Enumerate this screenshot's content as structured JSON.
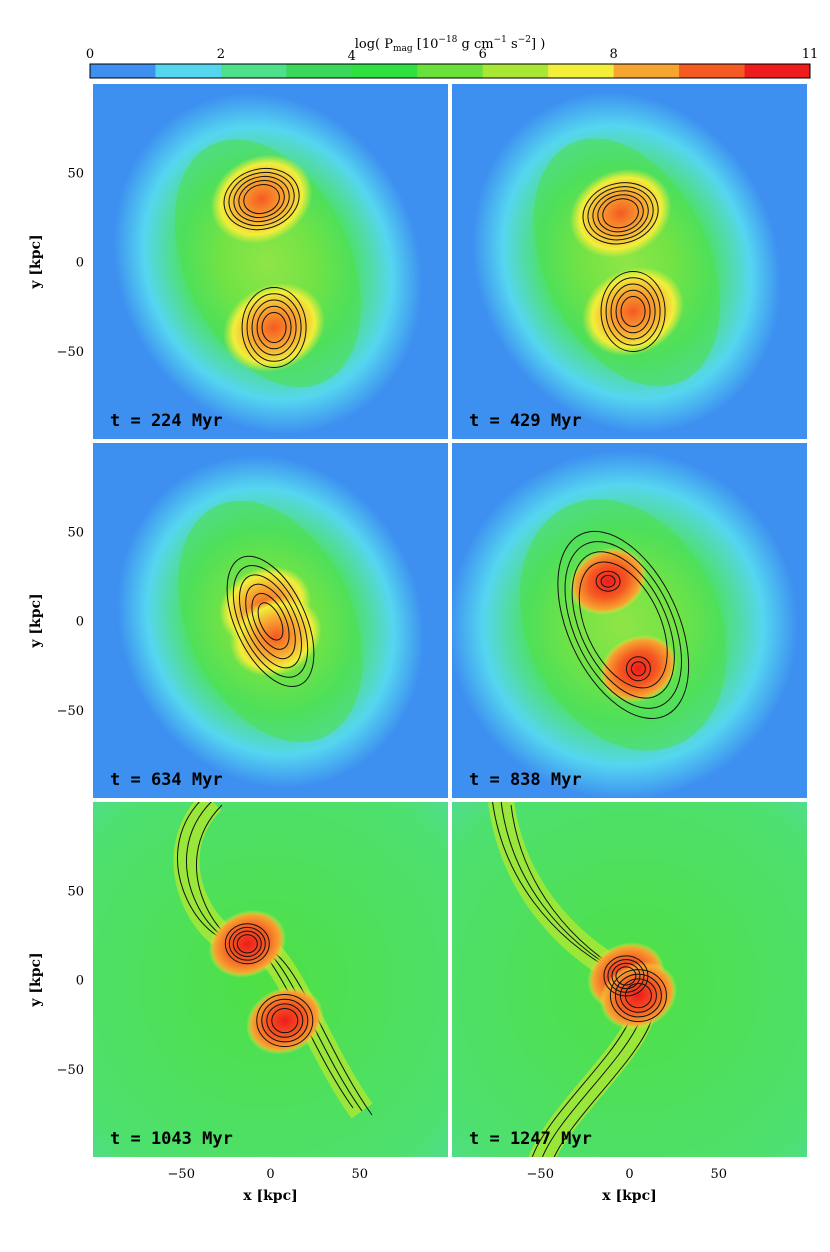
{
  "colorbar": {
    "title": "log( P",
    "title_sub": "mag",
    "title_rest": " [10",
    "title_exp1": "−18",
    "title_rest2": " g cm",
    "title_exp2": "−1",
    "title_rest3": " s",
    "title_exp3": "−2",
    "title_end": "] )",
    "tick_labels": [
      "0",
      "2",
      "4",
      "6",
      "8",
      "11"
    ],
    "colors": [
      "#3d8ff0",
      "#55d6f0",
      "#4ee08a",
      "#3ad85a",
      "#2ee040",
      "#6ae03a",
      "#a8e835",
      "#f2ee3a",
      "#f7a531",
      "#f55a22",
      "#ee1c1c"
    ]
  },
  "panels": [
    {
      "time_label": "t =  224 Myr"
    },
    {
      "time_label": "t =  429 Myr"
    },
    {
      "time_label": "t =  634 Myr"
    },
    {
      "time_label": "t =  838 Myr"
    },
    {
      "time_label": "t =  1043 Myr"
    },
    {
      "time_label": "t =  1247 Myr"
    }
  ],
  "axes": {
    "ylabel": "y [kpc]",
    "xlabel": "x [kpc]",
    "y_ticks": [
      "50",
      "0",
      "−50"
    ],
    "x_ticks": [
      "−50",
      "0",
      "50"
    ]
  },
  "chart_data": {
    "type": "heatmap",
    "title": "log( Pmag [10−18 g cm−1 s−2] )",
    "xlabel": "x [kpc]",
    "ylabel": "y [kpc]",
    "xlim": [
      -100,
      100
    ],
    "ylim": [
      -100,
      100
    ],
    "colorbar_range": [
      0,
      11
    ],
    "panels": [
      {
        "time_myr": 224,
        "peaks": [
          {
            "x": -5,
            "y": 35,
            "value": 8
          },
          {
            "x": 2,
            "y": -37,
            "value": 8
          }
        ]
      },
      {
        "time_myr": 429,
        "peaks": [
          {
            "x": -5,
            "y": 27,
            "value": 8
          },
          {
            "x": 2,
            "y": -28,
            "value": 8
          }
        ]
      },
      {
        "time_myr": 634,
        "peaks": [
          {
            "x": -3,
            "y": 8,
            "value": 9
          },
          {
            "x": 3,
            "y": -9,
            "value": 8.5
          }
        ]
      },
      {
        "time_myr": 838,
        "peaks": [
          {
            "x": -12,
            "y": 22,
            "value": 9
          },
          {
            "x": 5,
            "y": -27,
            "value": 9
          }
        ]
      },
      {
        "time_myr": 1043,
        "peaks": [
          {
            "x": -13,
            "y": 20,
            "value": 10
          },
          {
            "x": 8,
            "y": -23,
            "value": 10
          }
        ]
      },
      {
        "time_myr": 1247,
        "peaks": [
          {
            "x": -2,
            "y": 2,
            "value": 10.5
          },
          {
            "x": 5,
            "y": -9,
            "value": 10.5
          }
        ]
      }
    ]
  }
}
